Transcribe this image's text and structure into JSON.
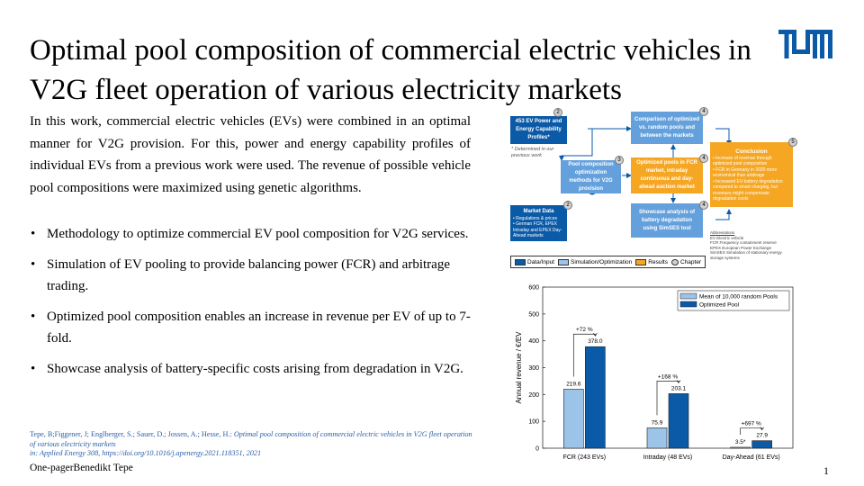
{
  "title": "Optimal pool composition of commercial electric vehicles in V2G fleet operation of various electricity markets",
  "logo": {
    "text": "TUM",
    "color": "#0b5aa7"
  },
  "intro": "In this work, commercial electric vehicles (EVs) were combined in an optimal manner for V2G provision.  For this, power and energy capability profiles of individual  EVs from a previous  work were used.  The revenue of possible vehicle pool compositions  were maximized using genetic algorithms.",
  "bullets": [
    "Methodology to optimize commercial EV pool composition for V2G services.",
    "Simulation of EV pooling to provide balancing power (FCR) and arbitrage trading.",
    "Optimized pool composition enables an increase in revenue per EV of up to 7-fold.",
    "Showcase analysis of battery-specific costs arising from degradation in V2G."
  ],
  "reference": {
    "authors": "Tepe, B;Figgener, J; Englberger, S.; Sauer, D.; Jossen, A.; Hesse, H.: ",
    "title_it": "Optimal pool composition of commercial electric vehicles in V2G fleet operation of various electricity markets",
    "journal_line": "in: Applied Energy 308, https://doi.org/10.1016/j.apenergy.2021.118351, 2021"
  },
  "footer": "One-pagerBenedikt Tepe",
  "page_number": "1",
  "diagram": {
    "boxes": {
      "ev_profiles": "453 EV Power and Energy Capability Profiles*",
      "note": "* Determined in our previous work",
      "pool_opt": "Pool composition optimization methods for V2G provision",
      "market": {
        "title": "Market Data",
        "items": [
          "Regulations & prices",
          "German FCR, EPEX Intraday and EPEX Day-Ahead markets"
        ]
      },
      "comparison": "Comparison of optimized vs. random pools and between the markets",
      "optimized_pools": "Optimized pools in FCR market, intraday continuous and day-ahead auction market",
      "showcase": "Showcase analysis of battery degradation using SimSES tool",
      "conclusion": {
        "title": "Conclusion",
        "items": [
          "Increase of revenue through optimized pool composition",
          "FCR in Germany in 2020 more economical than arbitrage",
          "Increased EV battery degradation compared to smart charging, but revenues might compensate degradation costs"
        ]
      }
    },
    "badges": [
      "2",
      "4",
      "3",
      "4",
      "5",
      "2",
      "4"
    ],
    "abbreviations": {
      "title": "Abbreviations",
      "items": [
        "EV     Electric vehicle",
        "FCR    Frequency containment reserve",
        "EPEX   European Power Exchange",
        "SimSES Simulation of stationary energy storage systems"
      ]
    },
    "legend": [
      {
        "label": "Data/Input",
        "color": "#0b5aa7"
      },
      {
        "label": "Simulation/Optimization",
        "color": "#9cc3e8"
      },
      {
        "label": "Results",
        "color": "#f5a623"
      },
      {
        "label": "Chapter",
        "color": "#d0d0d0"
      }
    ]
  },
  "chart_data": {
    "type": "bar",
    "categories": [
      "FCR (243 EVs)",
      "Intraday (48 EVs)",
      "Day-Ahead (61 EVs)"
    ],
    "series": [
      {
        "name": "Mean of 10,000 random Pools",
        "values": [
          219.6,
          75.9,
          3.5
        ],
        "labels": [
          "219.6",
          "75.9",
          "3.5*"
        ],
        "color": "#9cc3e8"
      },
      {
        "name": "Optimized Pool",
        "values": [
          378.0,
          203.1,
          27.9
        ],
        "labels": [
          "378.0",
          "203.1",
          "27.9"
        ],
        "color": "#0b5aa7"
      }
    ],
    "annotations": [
      "+72 %",
      "+168 %",
      "+697 %"
    ],
    "ylabel": "Annual revenue / €/EV",
    "ylim": [
      0,
      600
    ],
    "yticks": [
      0,
      100,
      200,
      300,
      400,
      500,
      600
    ],
    "grid": false,
    "legend_position": "top-right"
  }
}
